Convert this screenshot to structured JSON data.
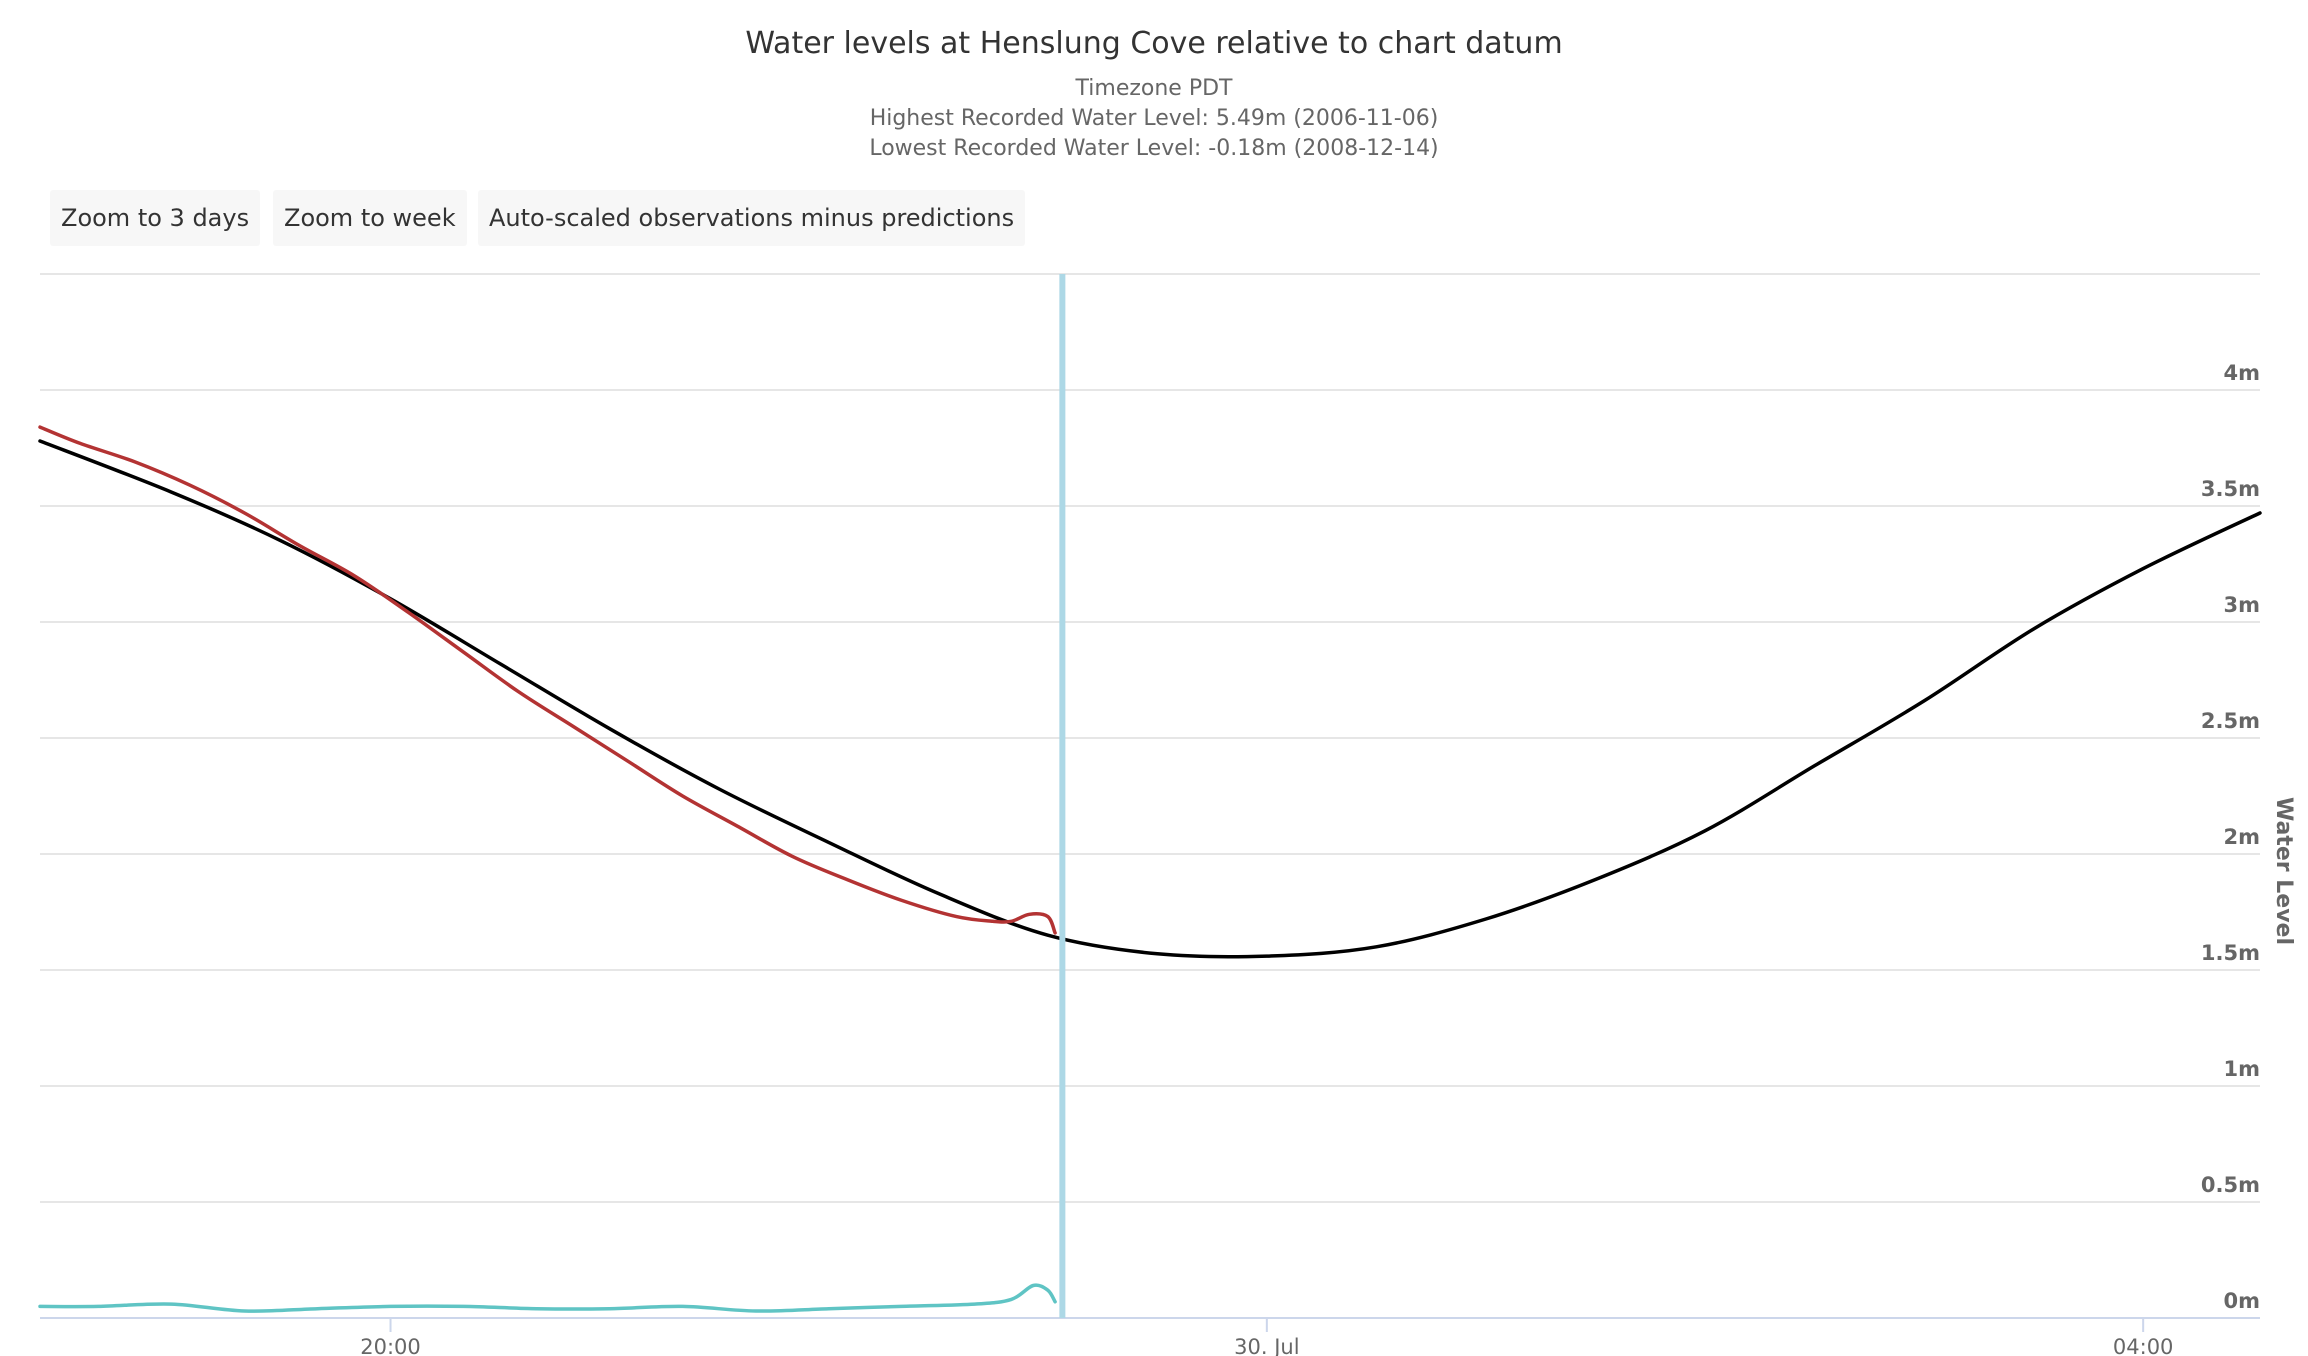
{
  "chart_data": {
    "type": "line",
    "title": "Water levels at Henslung Cove relative to chart datum",
    "subtitle_lines": [
      "Timezone PDT",
      "Highest Recorded Water Level: 5.49m (2006-11-06)",
      "Lowest Recorded Water Level: -0.18m (2008-12-14)"
    ],
    "ylabel": "Water Level",
    "ylim": [
      0,
      4.5
    ],
    "yticks": [
      "0m",
      "0.5m",
      "1m",
      "1.5m",
      "2m",
      "2.5m",
      "3m",
      "3.5m",
      "4m"
    ],
    "x_range": [
      "2024-07-29T18:24",
      "2024-07-30T04:32"
    ],
    "xticks": [
      {
        "value": "2024-07-29T20:00",
        "label": "20:00"
      },
      {
        "value": "2024-07-30T00:00",
        "label": "30. Jul"
      },
      {
        "value": "2024-07-30T04:00",
        "label": "04:00"
      }
    ],
    "current_time_marker": "2024-07-29T23:04",
    "grid": true,
    "series": [
      {
        "key": "predicted",
        "color": "#000000",
        "x": [
          "2024-07-29T18:24",
          "2024-07-29T19:00",
          "2024-07-29T19:30",
          "2024-07-29T20:00",
          "2024-07-29T20:30",
          "2024-07-29T21:00",
          "2024-07-29T21:30",
          "2024-07-29T22:00",
          "2024-07-29T22:30",
          "2024-07-29T23:00",
          "2024-07-29T23:30",
          "2024-07-30T00:00",
          "2024-07-30T00:30",
          "2024-07-30T01:00",
          "2024-07-30T01:30",
          "2024-07-30T02:00",
          "2024-07-30T02:30",
          "2024-07-30T03:00",
          "2024-07-30T03:30",
          "2024-07-30T04:00",
          "2024-07-30T04:32"
        ],
        "values": [
          3.78,
          3.56,
          3.35,
          3.1,
          2.82,
          2.54,
          2.28,
          2.05,
          1.83,
          1.65,
          1.57,
          1.56,
          1.6,
          1.72,
          1.89,
          2.1,
          2.38,
          2.66,
          2.97,
          3.23,
          3.47
        ]
      },
      {
        "key": "observed",
        "color": "#b33333",
        "x": [
          "2024-07-29T18:24",
          "2024-07-29T18:35",
          "2024-07-29T18:50",
          "2024-07-29T19:05",
          "2024-07-29T19:20",
          "2024-07-29T19:35",
          "2024-07-29T19:50",
          "2024-07-29T20:05",
          "2024-07-29T20:20",
          "2024-07-29T20:35",
          "2024-07-29T20:50",
          "2024-07-29T21:05",
          "2024-07-29T21:20",
          "2024-07-29T21:35",
          "2024-07-29T21:50",
          "2024-07-29T22:05",
          "2024-07-29T22:20",
          "2024-07-29T22:35",
          "2024-07-29T22:45",
          "2024-07-29T22:50",
          "2024-07-29T22:55",
          "2024-07-29T23:00",
          "2024-07-29T23:02"
        ],
        "values": [
          3.84,
          3.77,
          3.69,
          3.59,
          3.47,
          3.33,
          3.2,
          3.04,
          2.87,
          2.7,
          2.55,
          2.4,
          2.25,
          2.12,
          1.99,
          1.89,
          1.8,
          1.73,
          1.71,
          1.71,
          1.74,
          1.73,
          1.66
        ]
      },
      {
        "key": "observed_minus_predicted",
        "color": "#5fc4c4",
        "x": [
          "2024-07-29T18:24",
          "2024-07-29T18:40",
          "2024-07-29T19:00",
          "2024-07-29T19:20",
          "2024-07-29T19:40",
          "2024-07-29T20:00",
          "2024-07-29T20:20",
          "2024-07-29T20:40",
          "2024-07-29T21:00",
          "2024-07-29T21:20",
          "2024-07-29T21:40",
          "2024-07-29T22:00",
          "2024-07-29T22:20",
          "2024-07-29T22:40",
          "2024-07-29T22:50",
          "2024-07-29T22:56",
          "2024-07-29T23:00",
          "2024-07-29T23:02"
        ],
        "values": [
          0.05,
          0.05,
          0.06,
          0.03,
          0.04,
          0.05,
          0.05,
          0.04,
          0.04,
          0.05,
          0.03,
          0.04,
          0.05,
          0.06,
          0.08,
          0.14,
          0.12,
          0.07
        ]
      }
    ]
  },
  "buttons": {
    "zoom_3days": "Zoom to 3 days",
    "zoom_week": "Zoom to week",
    "auto_scaled": "Auto-scaled observations minus predictions"
  }
}
